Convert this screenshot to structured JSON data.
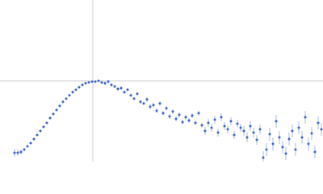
{
  "chart_data": {
    "type": "scatter",
    "xlim": [
      0,
      4
    ],
    "ylim": [
      0,
      2
    ],
    "reference_x": 1.15,
    "reference_y": 1.0,
    "color": "#3763c2",
    "error_color": "#a9bde6",
    "x": [
      0.18,
      0.22,
      0.26,
      0.3,
      0.34,
      0.38,
      0.42,
      0.46,
      0.5,
      0.54,
      0.58,
      0.62,
      0.66,
      0.7,
      0.74,
      0.78,
      0.82,
      0.86,
      0.9,
      0.94,
      0.98,
      1.02,
      1.06,
      1.1,
      1.14,
      1.18,
      1.22,
      1.26,
      1.3,
      1.34,
      1.38,
      1.42,
      1.46,
      1.5,
      1.54,
      1.58,
      1.62,
      1.66,
      1.7,
      1.74,
      1.78,
      1.82,
      1.86,
      1.9,
      1.94,
      1.98,
      2.02,
      2.06,
      2.1,
      2.14,
      2.18,
      2.22,
      2.26,
      2.3,
      2.34,
      2.38,
      2.42,
      2.46,
      2.5,
      2.54,
      2.58,
      2.62,
      2.66,
      2.7,
      2.74,
      2.78,
      2.82,
      2.86,
      2.9,
      2.94,
      2.98,
      3.02,
      3.06,
      3.1,
      3.14,
      3.18,
      3.22,
      3.26,
      3.3,
      3.34,
      3.38,
      3.42,
      3.46,
      3.5,
      3.54,
      3.58,
      3.62,
      3.66,
      3.7,
      3.74,
      3.78,
      3.82,
      3.86,
      3.9,
      3.94,
      3.98
    ],
    "values": [
      0.11,
      0.11,
      0.12,
      0.15,
      0.19,
      0.23,
      0.28,
      0.33,
      0.38,
      0.43,
      0.48,
      0.54,
      0.59,
      0.64,
      0.69,
      0.74,
      0.78,
      0.82,
      0.86,
      0.89,
      0.92,
      0.95,
      0.97,
      0.98,
      0.99,
      0.99,
      1.0,
      0.98,
      0.97,
      0.99,
      0.95,
      0.93,
      0.9,
      0.91,
      0.86,
      0.89,
      0.82,
      0.78,
      0.84,
      0.74,
      0.72,
      0.77,
      0.68,
      0.7,
      0.63,
      0.72,
      0.6,
      0.66,
      0.56,
      0.62,
      0.53,
      0.58,
      0.49,
      0.55,
      0.51,
      0.57,
      0.48,
      0.6,
      0.45,
      0.38,
      0.48,
      0.42,
      0.52,
      0.36,
      0.55,
      0.44,
      0.4,
      0.5,
      0.33,
      0.47,
      0.42,
      0.38,
      0.3,
      0.44,
      0.36,
      0.27,
      0.4,
      0.05,
      0.15,
      0.34,
      0.22,
      0.5,
      0.3,
      0.18,
      0.1,
      0.28,
      0.38,
      0.15,
      0.42,
      0.3,
      0.55,
      0.22,
      0.35,
      0.12,
      0.48,
      0.4
    ],
    "errors": [
      0.05,
      0.04,
      0.03,
      0.02,
      0.01,
      0.01,
      0.01,
      0.01,
      0.01,
      0.01,
      0.01,
      0.01,
      0.01,
      0.01,
      0.01,
      0.01,
      0.01,
      0.01,
      0.01,
      0.01,
      0.01,
      0.01,
      0.01,
      0.01,
      0.01,
      0.01,
      0.01,
      0.02,
      0.02,
      0.02,
      0.02,
      0.02,
      0.02,
      0.02,
      0.02,
      0.02,
      0.02,
      0.02,
      0.02,
      0.02,
      0.02,
      0.03,
      0.03,
      0.03,
      0.03,
      0.03,
      0.03,
      0.03,
      0.03,
      0.03,
      0.03,
      0.03,
      0.03,
      0.03,
      0.03,
      0.03,
      0.03,
      0.03,
      0.03,
      0.05,
      0.05,
      0.05,
      0.05,
      0.05,
      0.05,
      0.05,
      0.05,
      0.05,
      0.05,
      0.05,
      0.05,
      0.06,
      0.06,
      0.06,
      0.06,
      0.06,
      0.06,
      0.08,
      0.08,
      0.08,
      0.08,
      0.08,
      0.08,
      0.08,
      0.08,
      0.08,
      0.08,
      0.08,
      0.08,
      0.08,
      0.08,
      0.08,
      0.08,
      0.08,
      0.08,
      0.08
    ]
  }
}
